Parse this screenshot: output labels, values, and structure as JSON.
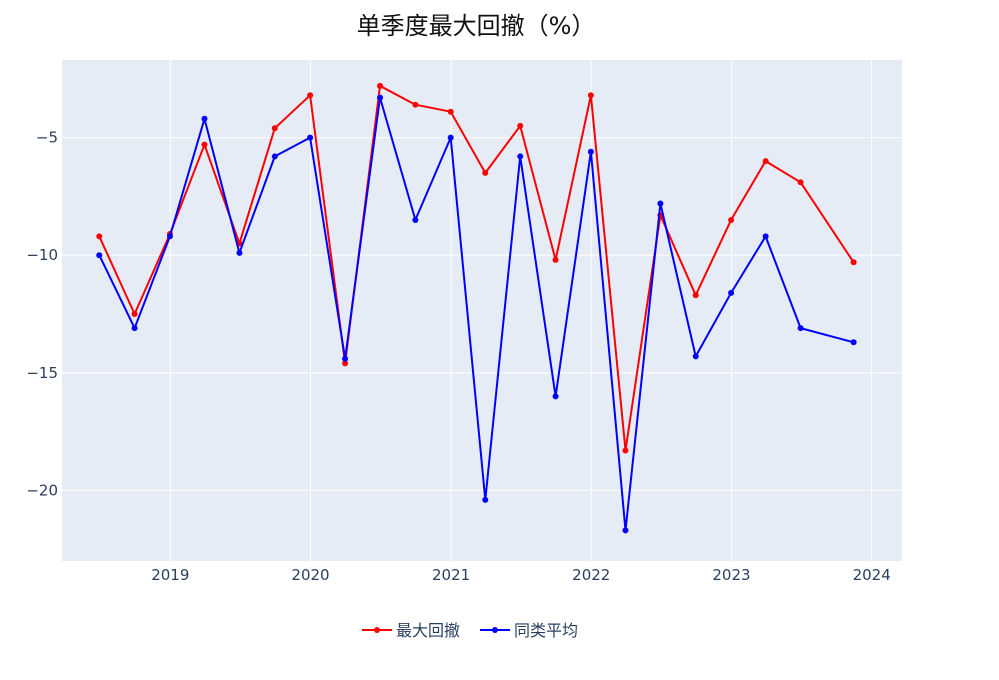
{
  "chart_data": {
    "type": "line",
    "title": "单季度最大回撤（%）",
    "xlabel": "",
    "ylabel": "",
    "x_ticks": [
      "2019",
      "2020",
      "2021",
      "2022",
      "2023",
      "2024"
    ],
    "y_ticks": [
      -5,
      -10,
      -15,
      -20
    ],
    "y_tick_labels": [
      "−5",
      "−10",
      "−15",
      "−20"
    ],
    "xlim": [
      "2018-03-25",
      "2024-03-20"
    ],
    "ylim": [
      -23.0,
      -1.7
    ],
    "grid": true,
    "legend_position": "bottom-center",
    "plot_background": "#e5ecf6",
    "series": [
      {
        "name": "最大回撤",
        "color": "#ff0000",
        "x": [
          "2018-06-30",
          "2018-09-30",
          "2018-12-31",
          "2019-03-31",
          "2019-06-30",
          "2019-09-30",
          "2019-12-31",
          "2020-03-31",
          "2020-06-30",
          "2020-09-30",
          "2020-12-31",
          "2021-03-31",
          "2021-06-30",
          "2021-09-30",
          "2021-12-31",
          "2022-03-31",
          "2022-06-30",
          "2022-09-30",
          "2022-12-31",
          "2023-03-31",
          "2023-06-30",
          "2023-11-15"
        ],
        "y": [
          -9.2,
          -12.5,
          -9.1,
          -5.3,
          -9.5,
          -4.6,
          -3.2,
          -14.6,
          -2.8,
          -3.6,
          -3.9,
          -6.5,
          -4.5,
          -10.2,
          -3.2,
          -18.3,
          -8.3,
          -11.7,
          -8.5,
          -6.0,
          -6.9,
          -10.3
        ]
      },
      {
        "name": "同类平均",
        "color": "#0000ff",
        "x": [
          "2018-06-30",
          "2018-09-30",
          "2018-12-31",
          "2019-03-31",
          "2019-06-30",
          "2019-09-30",
          "2019-12-31",
          "2020-03-31",
          "2020-06-30",
          "2020-09-30",
          "2020-12-31",
          "2021-03-31",
          "2021-06-30",
          "2021-09-30",
          "2021-12-31",
          "2022-03-31",
          "2022-06-30",
          "2022-09-30",
          "2022-12-31",
          "2023-03-31",
          "2023-06-30",
          "2023-11-15"
        ],
        "y": [
          -10.0,
          -13.1,
          -9.2,
          -4.2,
          -9.9,
          -5.8,
          -5.0,
          -14.4,
          -3.3,
          -8.5,
          -5.0,
          -20.4,
          -5.8,
          -16.0,
          -5.6,
          -21.7,
          -7.8,
          -14.3,
          -11.6,
          -9.2,
          -13.1,
          -13.7
        ]
      }
    ]
  }
}
